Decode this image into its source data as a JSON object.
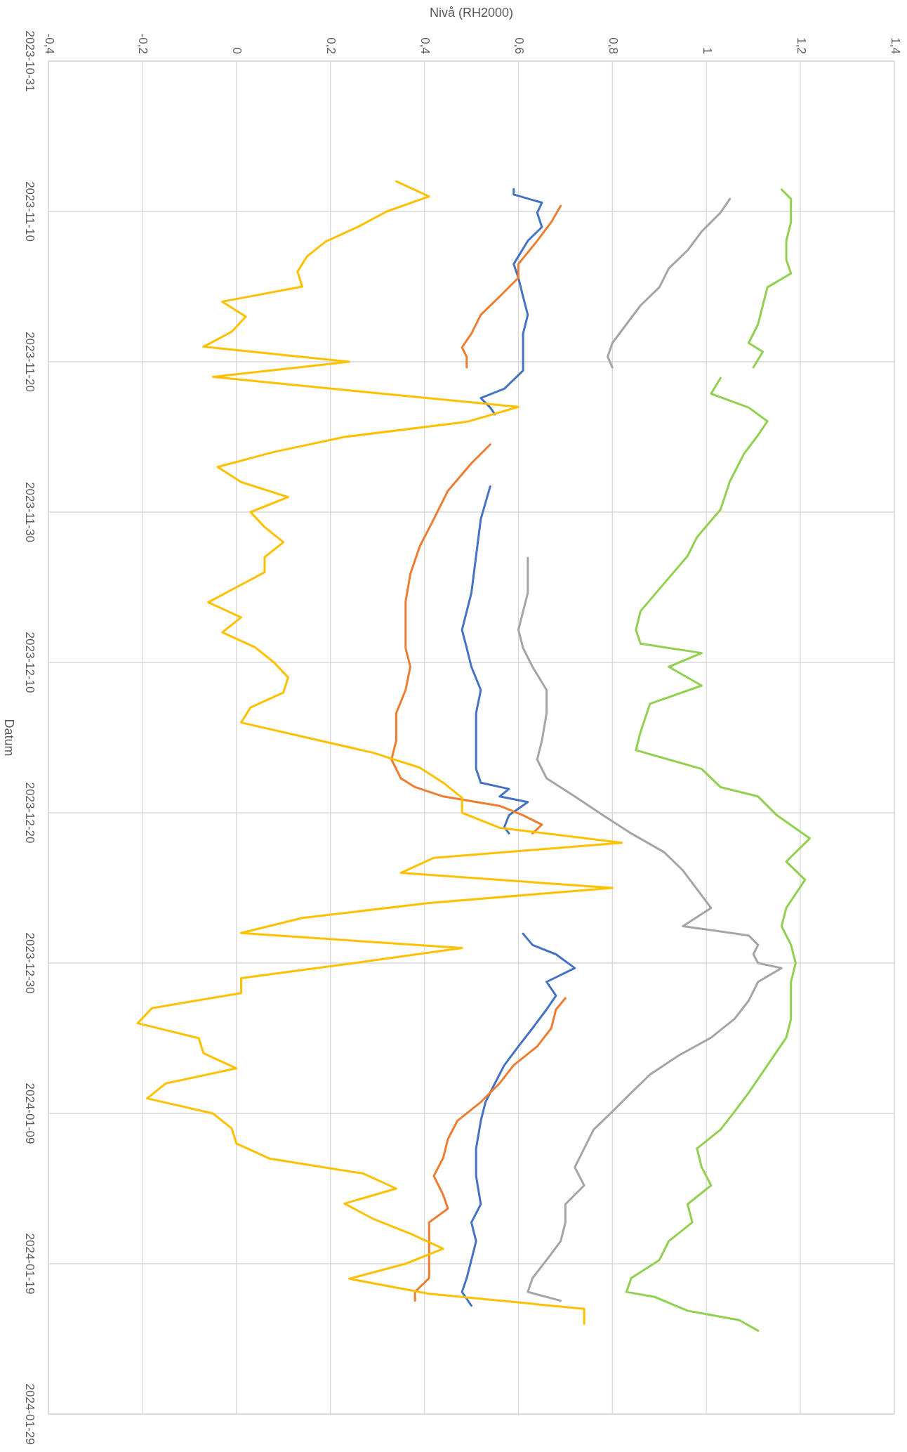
{
  "chart_data": {
    "type": "line",
    "orientation": "horizontal",
    "xlabel": "Nivå (RH2000)",
    "ylabel": "Datum",
    "ylim": [
      "2024-01-29",
      "2023-10-31"
    ],
    "yticks": [
      "2023-10-31",
      "2023-11-10",
      "2023-11-20",
      "2023-11-30",
      "2023-12-10",
      "2023-12-20",
      "2023-12-30",
      "2024-01-09",
      "2024-01-19",
      "2024-01-29"
    ],
    "xlim": [
      -0.4,
      1.4
    ],
    "xticks": [
      {
        "value": -0.4,
        "label": "-0,4"
      },
      {
        "value": -0.2,
        "label": "-0,2"
      },
      0,
      {
        "value": 0.2,
        "label": "0,2"
      },
      {
        "value": 0.4,
        "label": "0,4"
      },
      {
        "value": 0.6,
        "label": "0,6"
      },
      {
        "value": 0.8,
        "label": "0,8"
      },
      1,
      {
        "value": 1.2,
        "label": "1,2"
      },
      {
        "value": 1.4,
        "label": "1,4"
      }
    ],
    "grid": true,
    "series": [
      {
        "color": "#4472c4",
        "x": [
          "2023-11-08T12:00",
          "2023-11-08T21:00",
          "2023-11-09T10:00",
          "2023-11-10T02:00",
          "2023-11-11T01:00",
          "2023-11-11T23:00",
          "2023-11-13T12:00",
          "2023-11-14T10:00",
          "2023-11-15T16:00",
          "2023-11-16T21:00",
          "2023-11-18T03:00",
          "2023-11-19T08:00",
          "2023-11-20T14:00",
          "2023-11-21T19:00",
          "2023-11-22T10:00",
          "2023-11-23T01:00",
          "2023-11-23T12:00",
          "2023-11-25T12:00",
          "2023-11-28T07:00",
          "2023-11-30T11:00",
          "2023-12-02T22:00",
          "2023-12-05T09:00",
          "2023-12-07T20:00",
          "2023-12-09T01:00",
          "2023-12-10T07:00",
          "2023-12-11T20:00",
          "2023-12-13T09:00",
          "2023-12-15T05:00",
          "2023-12-17T02:00",
          "2023-12-18T00:00",
          "2023-12-18T10:00",
          "2023-12-18T22:00",
          "2023-12-19T07:00",
          "2023-12-20T04:00",
          "2023-12-20T23:00",
          "2023-12-21T09:00",
          "2023-12-25T00:00",
          "2023-12-28T01:00",
          "2023-12-28T19:00",
          "2023-12-29T10:00",
          "2023-12-30T08:00",
          "2023-12-31T06:00",
          "2024-01-01T04:00",
          "2024-01-02T02:00",
          "2024-01-03T08:00",
          "2024-01-04T13:00",
          "2024-01-05T19:00",
          "2024-01-07T00:00",
          "2024-01-08T06:00",
          "2024-01-09T12:00",
          "2024-01-11T08:00",
          "2024-01-13T04:00",
          "2024-01-15T01:00",
          "2024-01-16T06:00",
          "2024-01-17T12:00",
          "2024-01-18T18:00",
          "2024-01-19T23:00",
          "2024-01-20T21:00",
          "2024-01-21T19:00"
        ],
        "values": [
          0.59,
          0.59,
          0.65,
          0.64,
          0.65,
          0.62,
          0.59,
          0.6,
          0.61,
          0.62,
          0.61,
          0.61,
          0.61,
          0.57,
          0.52,
          0.54,
          0.55,
          null,
          0.54,
          0.52,
          0.51,
          0.5,
          0.48,
          0.49,
          0.5,
          0.52,
          0.51,
          0.51,
          0.51,
          0.52,
          0.58,
          0.56,
          0.62,
          0.58,
          0.57,
          0.58,
          null,
          0.61,
          0.63,
          0.68,
          0.72,
          0.66,
          0.68,
          0.66,
          0.63,
          0.6,
          0.57,
          0.55,
          0.53,
          0.52,
          0.51,
          0.51,
          0.52,
          0.5,
          0.51,
          0.5,
          0.49,
          0.48,
          0.5
        ]
      },
      {
        "color": "#ed7d31",
        "x": [
          "2023-11-09T15:00",
          "2023-11-10T17:00",
          "2023-11-11T23:00",
          "2023-11-13T12:00",
          "2023-11-14T10:00",
          "2023-11-15T16:00",
          "2023-11-16T21:00",
          "2023-11-18T03:00",
          "2023-11-19T01:00",
          "2023-11-19T16:00",
          "2023-11-20T09:00",
          "2023-11-23T00:00",
          "2023-11-25T12:00",
          "2023-11-26T18:00",
          "2023-11-28T14:00",
          "2023-11-30T11:00",
          "2023-12-02T07:00",
          "2023-12-04T03:00",
          "2023-12-05T23:00",
          "2023-12-07T20:00",
          "2023-12-09T01:00",
          "2023-12-10T07:00",
          "2023-12-11T20:00",
          "2023-12-13T09:00",
          "2023-12-15T05:00",
          "2023-12-16T11:00",
          "2023-12-17T17:00",
          "2023-12-18T07:00",
          "2023-12-18T22:00",
          "2023-12-19T13:00",
          "2023-12-20T04:00",
          "2023-12-20T19:00",
          "2023-12-21T09:00",
          "2023-12-25T00:00",
          "2024-01-01T08:00",
          "2024-01-02T02:00",
          "2024-01-03T08:00",
          "2024-01-04T13:00",
          "2024-01-05T19:00",
          "2024-01-07T00:00",
          "2024-01-08T06:00",
          "2024-01-09T12:00",
          "2024-01-10T17:00",
          "2024-01-11T23:00",
          "2024-01-13T04:00",
          "2024-01-14T10:00",
          "2024-01-15T08:00",
          "2024-01-16T06:00",
          "2024-01-17T12:00",
          "2024-01-18T18:00",
          "2024-01-19T23:00",
          "2024-01-20T21:00",
          "2024-01-21T11:00"
        ],
        "values": [
          0.69,
          0.67,
          0.64,
          0.6,
          0.6,
          0.56,
          0.52,
          0.5,
          0.48,
          0.49,
          0.49,
          null,
          0.54,
          0.5,
          0.45,
          0.42,
          0.39,
          0.37,
          0.36,
          0.36,
          0.36,
          0.37,
          0.36,
          0.34,
          0.34,
          0.33,
          0.35,
          0.38,
          0.44,
          0.56,
          0.61,
          0.65,
          0.63,
          null,
          0.7,
          0.68,
          0.67,
          0.64,
          0.59,
          0.56,
          0.52,
          0.47,
          0.45,
          0.44,
          0.42,
          0.44,
          0.45,
          0.41,
          0.41,
          0.41,
          0.41,
          0.38,
          0.38
        ]
      },
      {
        "color": "#a5a5a5",
        "x": [
          "2023-11-09T04:00",
          "2023-11-10T02:00",
          "2023-11-11T08:00",
          "2023-11-12T14:00",
          "2023-11-13T19:00",
          "2023-11-15T01:00",
          "2023-11-16T06:00",
          "2023-11-17T12:00",
          "2023-11-18T18:00",
          "2023-11-19T16:00",
          "2023-11-20T09:00",
          "2023-11-25T00:00",
          "2023-12-03T01:00",
          "2023-12-05T09:00",
          "2023-12-07T20:00",
          "2023-12-09T01:00",
          "2023-12-10T07:00",
          "2023-12-11T20:00",
          "2023-12-13T09:00",
          "2023-12-15T05:00",
          "2023-12-16T11:00",
          "2023-12-17T17:00",
          "2023-12-18T22:00",
          "2023-12-20T04:00",
          "2023-12-21T09:00",
          "2023-12-22T15:00",
          "2023-12-23T20:00",
          "2023-12-25T02:00",
          "2023-12-26T08:00",
          "2023-12-27T13:00",
          "2023-12-28T04:00",
          "2023-12-28T19:00",
          "2023-12-29T10:00",
          "2023-12-30T00:00",
          "2023-12-30T08:00",
          "2023-12-31T06:00",
          "2024-01-01T12:00",
          "2024-01-02T17:00",
          "2024-01-03T23:00",
          "2024-01-05T04:00",
          "2024-01-06T10:00",
          "2024-01-07T15:00",
          "2024-01-08T21:00",
          "2024-01-10T02:00",
          "2024-01-11T08:00",
          "2024-01-12T14:00",
          "2024-01-13T19:00",
          "2024-01-15T01:00",
          "2024-01-16T06:00",
          "2024-01-17T12:00",
          "2024-01-18T18:00",
          "2024-01-19T23:00",
          "2024-01-20T21:00",
          "2024-01-21T11:00"
        ],
        "values": [
          1.05,
          1.03,
          0.99,
          0.96,
          0.92,
          0.9,
          0.86,
          0.83,
          0.8,
          0.79,
          0.8,
          null,
          0.62,
          0.62,
          0.6,
          0.61,
          0.63,
          0.66,
          0.66,
          0.65,
          0.64,
          0.66,
          0.72,
          0.78,
          0.84,
          0.91,
          0.95,
          0.98,
          1.01,
          0.95,
          1.09,
          1.11,
          1.1,
          1.11,
          1.16,
          1.11,
          1.09,
          1.06,
          1.01,
          0.94,
          0.88,
          0.84,
          0.8,
          0.76,
          0.74,
          0.72,
          0.74,
          0.7,
          0.7,
          0.69,
          0.66,
          0.63,
          0.62,
          0.69
        ]
      },
      {
        "color": "#92d050",
        "x": [
          "2023-11-08T13:00",
          "2023-11-09T04:00",
          "2023-11-10T17:00",
          "2023-11-11T23:00",
          "2023-11-13T05:00",
          "2023-11-14T03:00",
          "2023-11-15T01:00",
          "2023-11-16T06:00",
          "2023-11-17T12:00",
          "2023-11-18T18:00",
          "2023-11-19T08:00",
          "2023-11-20T09:00",
          "2023-11-20T18:00",
          "2023-11-21T02:00",
          "2023-11-22T03:00",
          "2023-11-23T01:00",
          "2023-11-23T23:00",
          "2023-11-24T21:00",
          "2023-11-26T03:00",
          "2023-11-27T23:00",
          "2023-11-29T20:00",
          "2023-12-01T16:00",
          "2023-12-02T22:00",
          "2023-12-04T18:00",
          "2023-12-06T14:00",
          "2023-12-07T20:00",
          "2023-12-08T18:00",
          "2023-12-09T09:00",
          "2023-12-10T07:00",
          "2023-12-11T13:00",
          "2023-12-12T18:00",
          "2023-12-14T15:00",
          "2023-12-15T20:00",
          "2023-12-16T11:00",
          "2023-12-17T02:00",
          "2023-12-18T07:00",
          "2023-12-18T22:00",
          "2023-12-20T04:00",
          "2023-12-21T17:00",
          "2023-12-23T06:00",
          "2023-12-24T11:00",
          "2023-12-26T08:00",
          "2023-12-27T13:00",
          "2023-12-28T19:00",
          "2023-12-30T00:00",
          "2023-12-31T06:00",
          "2024-01-01T12:00",
          "2024-01-02T17:00",
          "2024-01-03T23:00",
          "2024-01-05T19:00",
          "2024-01-07T15:00",
          "2024-01-08T21:00",
          "2024-01-10T02:00",
          "2024-01-11T08:00",
          "2024-01-12T14:00",
          "2024-01-13T19:00",
          "2024-01-15T01:00",
          "2024-01-16T06:00",
          "2024-01-17T12:00",
          "2024-01-18T18:00",
          "2024-01-19T23:00",
          "2024-01-20T21:00",
          "2024-01-21T05:00",
          "2024-01-22T03:00",
          "2024-01-22T18:00",
          "2024-01-23T11:00"
        ],
        "values": [
          1.16,
          1.18,
          1.18,
          1.17,
          1.17,
          1.18,
          1.13,
          1.12,
          1.11,
          1.09,
          1.12,
          1.1,
          null,
          1.03,
          1.01,
          1.09,
          1.13,
          1.11,
          1.08,
          1.05,
          1.03,
          0.98,
          0.96,
          0.91,
          0.86,
          0.85,
          0.86,
          0.99,
          0.92,
          0.99,
          0.88,
          0.86,
          0.85,
          0.92,
          0.99,
          1.03,
          1.11,
          1.15,
          1.22,
          1.17,
          1.21,
          1.17,
          1.16,
          1.18,
          1.19,
          1.18,
          1.18,
          1.18,
          1.17,
          1.13,
          1.09,
          1.06,
          1.03,
          0.98,
          0.99,
          1.01,
          0.96,
          0.97,
          0.92,
          0.9,
          0.84,
          0.83,
          0.89,
          0.96,
          1.07,
          1.11
        ]
      },
      {
        "color": "#ffc000",
        "x": [
          "2023-11-08",
          "2023-11-09",
          "2023-11-10",
          "2023-11-11",
          "2023-11-12",
          "2023-11-13",
          "2023-11-14",
          "2023-11-15",
          "2023-11-16",
          "2023-11-17",
          "2023-11-18",
          "2023-11-19",
          "2023-11-20",
          "2023-11-21",
          "2023-11-22",
          "2023-11-23",
          "2023-11-24",
          "2023-11-25",
          "2023-11-26",
          "2023-11-27",
          "2023-11-28",
          "2023-11-29",
          "2023-11-30",
          "2023-12-01",
          "2023-12-02",
          "2023-12-03",
          "2023-12-04",
          "2023-12-05",
          "2023-12-06",
          "2023-12-07",
          "2023-12-08",
          "2023-12-09",
          "2023-12-10",
          "2023-12-11",
          "2023-12-12",
          "2023-12-13",
          "2023-12-14",
          "2023-12-15",
          "2023-12-16",
          "2023-12-17",
          "2023-12-18",
          "2023-12-19",
          "2023-12-20",
          "2023-12-21",
          "2023-12-22",
          "2023-12-23",
          "2023-12-24",
          "2023-12-25",
          "2023-12-26",
          "2023-12-27",
          "2023-12-28",
          "2023-12-29",
          "2023-12-30",
          "2023-12-31",
          "2024-01-01",
          "2024-01-02",
          "2024-01-03",
          "2024-01-04",
          "2024-01-05",
          "2024-01-06",
          "2024-01-07",
          "2024-01-08",
          "2024-01-09",
          "2024-01-10",
          "2024-01-11",
          "2024-01-12",
          "2024-01-13",
          "2024-01-14",
          "2024-01-15",
          "2024-01-16",
          "2024-01-17",
          "2024-01-18",
          "2024-01-19",
          "2024-01-20",
          "2024-01-21",
          "2024-01-22",
          "2024-01-23"
        ],
        "values": [
          0.34,
          0.41,
          0.32,
          0.26,
          0.19,
          0.15,
          0.13,
          0.14,
          -0.03,
          0.02,
          -0.01,
          -0.07,
          0.24,
          -0.05,
          0.27,
          0.6,
          0.49,
          0.23,
          0.08,
          -0.04,
          0.01,
          0.11,
          0.03,
          0.06,
          0.1,
          0.06,
          0.06,
          0.0,
          -0.06,
          0.01,
          -0.03,
          0.04,
          0.08,
          0.11,
          0.1,
          0.03,
          0.01,
          0.15,
          0.29,
          0.39,
          0.44,
          0.48,
          0.48,
          0.56,
          0.82,
          0.42,
          0.35,
          0.8,
          0.41,
          0.14,
          0.01,
          0.48,
          0.25,
          0.01,
          0.01,
          -0.18,
          -0.21,
          -0.08,
          -0.07,
          0.0,
          -0.15,
          -0.19,
          -0.05,
          -0.01,
          0.0,
          0.07,
          0.27,
          0.34,
          0.23,
          0.29,
          0.37,
          0.44,
          0.36,
          0.24,
          0.41,
          0.74,
          0.74
        ]
      }
    ]
  }
}
